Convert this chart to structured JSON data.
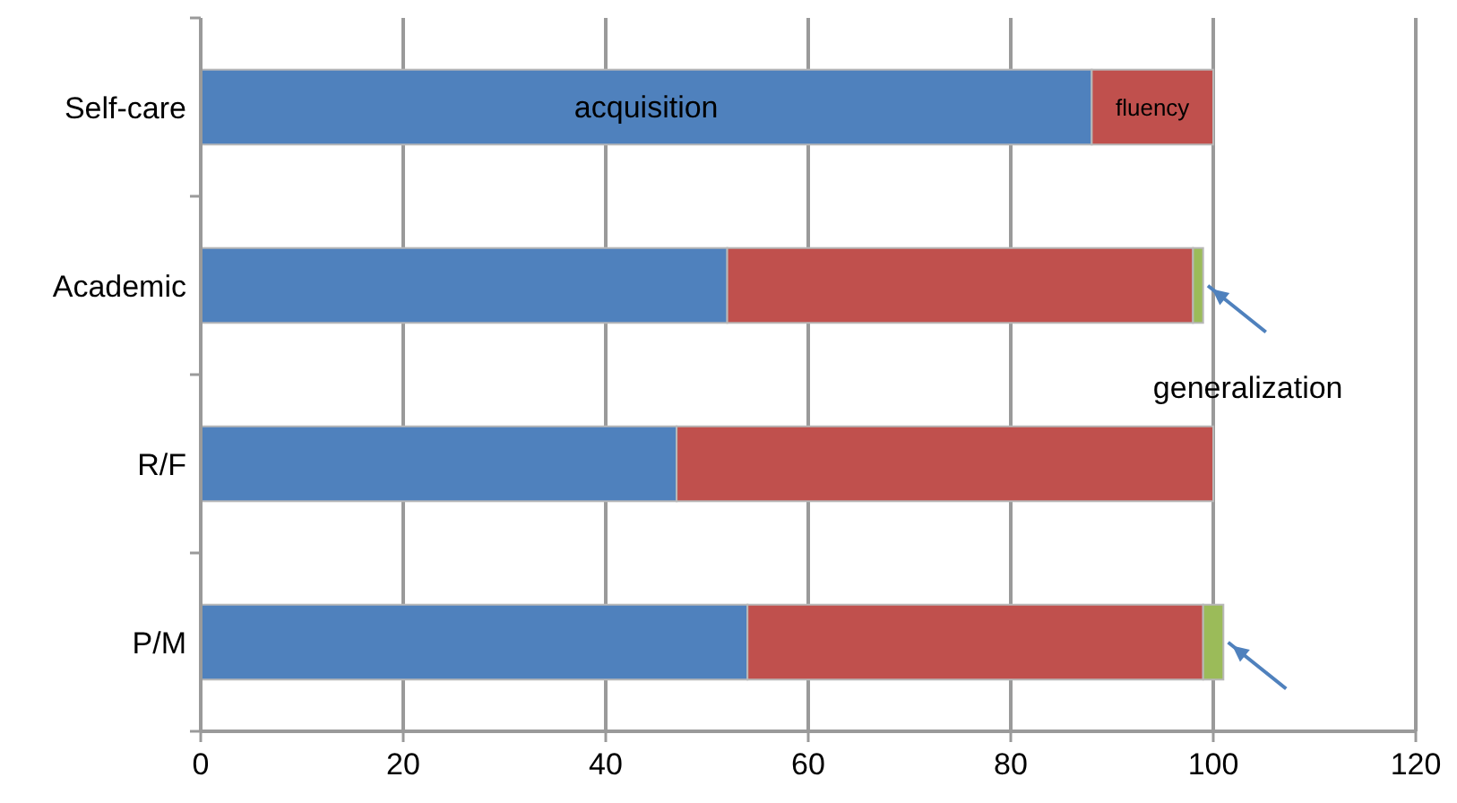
{
  "chart_data": {
    "type": "bar",
    "orientation": "horizontal",
    "stacked": true,
    "categories": [
      "Self-care",
      "Academic",
      "R/F",
      "P/M"
    ],
    "series": [
      {
        "name": "acquisition",
        "color": "#4f81bd",
        "values": [
          88,
          52,
          47,
          54
        ]
      },
      {
        "name": "fluency",
        "color": "#c0504d",
        "values": [
          12,
          46,
          53,
          45
        ]
      },
      {
        "name": "generalization",
        "color": "#9bbb59",
        "values": [
          0,
          1,
          0,
          2
        ]
      }
    ],
    "xlim": [
      0,
      120
    ],
    "xticks": [
      0,
      20,
      40,
      60,
      80,
      100,
      120
    ],
    "grid": "x"
  }
}
